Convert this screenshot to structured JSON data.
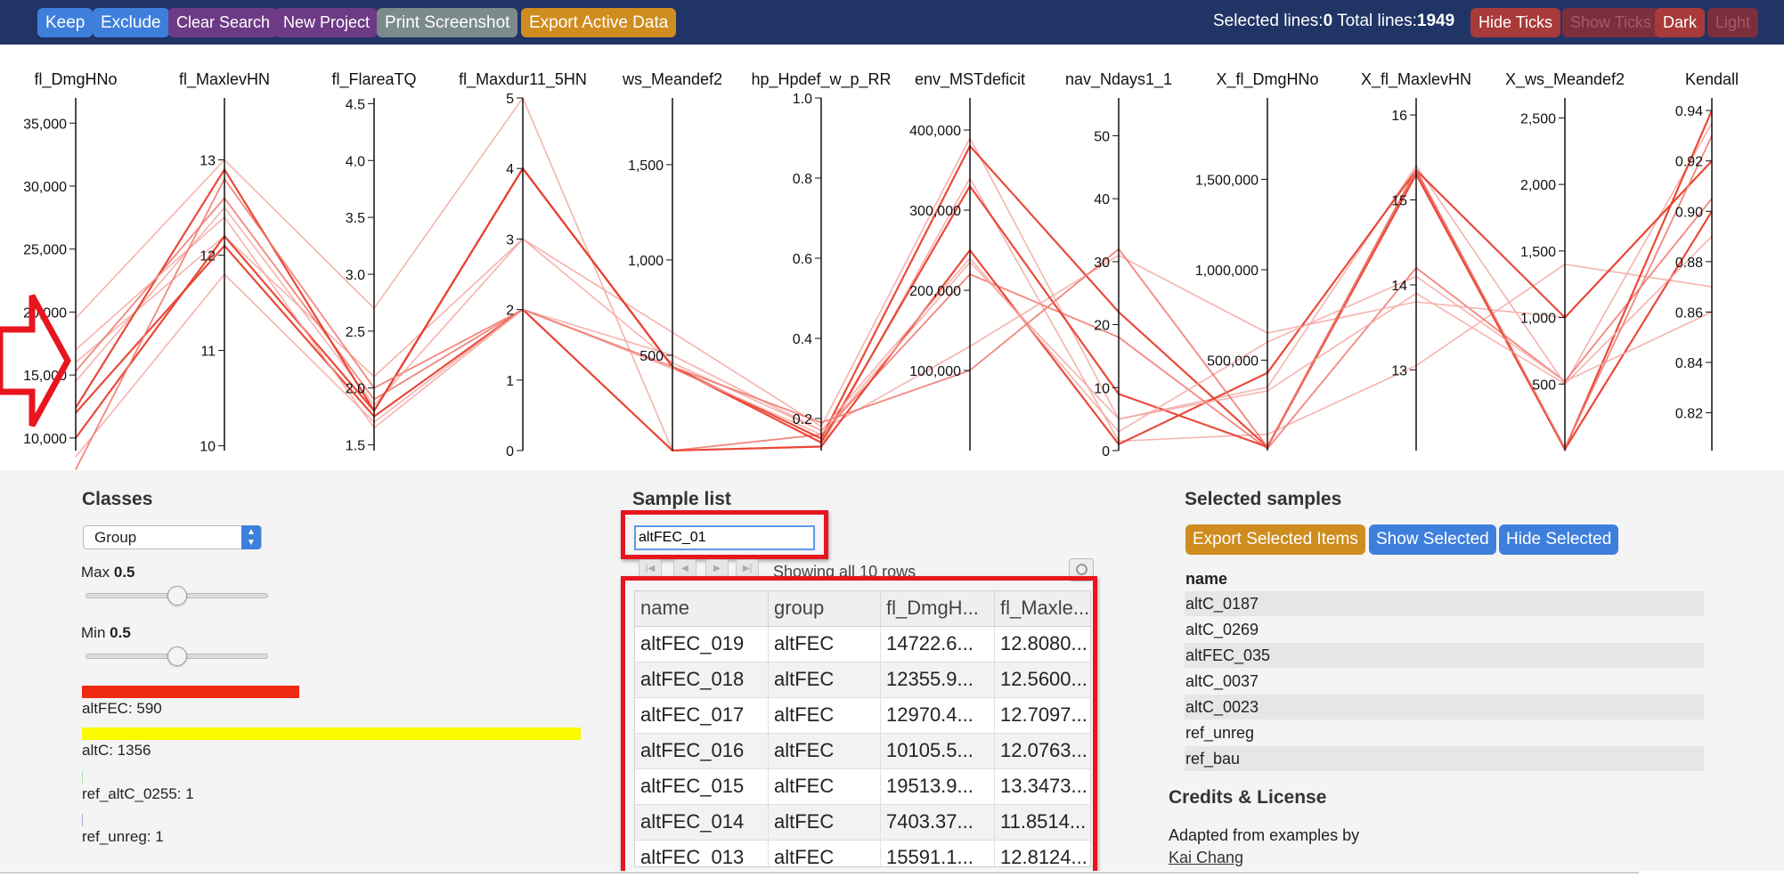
{
  "toolbar": {
    "keep": "Keep",
    "exclude": "Exclude",
    "clear_search": "Clear Search",
    "new_project": "New Project",
    "print_screenshot": "Print Screenshot",
    "export_active": "Export Active Data",
    "selected_label": "Selected lines:",
    "selected_count": "0",
    "total_label": "Total lines:",
    "total_count": "1949",
    "hide_ticks": "Hide Ticks",
    "show_ticks": "Show Ticks",
    "dark": "Dark",
    "light": "Light"
  },
  "chart_data": {
    "type": "parallel-coordinates",
    "axes": [
      {
        "name": "fl_DmgHNo",
        "min": 9000,
        "max": 37000,
        "ticks": [
          10000,
          15000,
          20000,
          25000,
          30000,
          35000
        ],
        "tick_labels": [
          "10,000",
          "15,000",
          "20,000",
          "25,000",
          "30,000",
          "35,000"
        ]
      },
      {
        "name": "fl_MaxlevHN",
        "min": 9.95,
        "max": 13.65,
        "ticks": [
          10,
          11,
          12,
          13
        ],
        "tick_labels": [
          "10",
          "11",
          "12",
          "13"
        ]
      },
      {
        "name": "fl_FlareaTQ",
        "min": 1.45,
        "max": 4.55,
        "ticks": [
          1.5,
          2.0,
          2.5,
          3.0,
          3.5,
          4.0,
          4.5
        ],
        "tick_labels": [
          "1.5",
          "2.0",
          "2.5",
          "3.0",
          "3.5",
          "4.0",
          "4.5"
        ]
      },
      {
        "name": "fl_Maxdur11_5HN",
        "min": 0,
        "max": 5,
        "ticks": [
          0,
          1,
          2,
          3,
          4,
          5
        ],
        "tick_labels": [
          "0",
          "1",
          "2",
          "3",
          "4",
          "5"
        ]
      },
      {
        "name": "ws_Meandef2",
        "min": 0,
        "max": 1850,
        "ticks": [
          500,
          1000,
          1500
        ],
        "tick_labels": [
          "500",
          "1,000",
          "1,500"
        ]
      },
      {
        "name": "hp_Hpdef_w_p_RR",
        "min": 0.12,
        "max": 1.0,
        "ticks": [
          0.2,
          0.4,
          0.6,
          0.8,
          1.0
        ],
        "tick_labels": [
          "0.2",
          "0.4",
          "0.6",
          "0.8",
          "1.0"
        ]
      },
      {
        "name": "env_MSTdeficit",
        "min": 0,
        "max": 440000,
        "ticks": [
          100000,
          200000,
          300000,
          400000
        ],
        "tick_labels": [
          "100,000",
          "200,000",
          "300,000",
          "400,000"
        ]
      },
      {
        "name": "nav_Ndays1_1",
        "min": 0,
        "max": 56,
        "ticks": [
          0,
          10,
          20,
          30,
          40,
          50
        ],
        "tick_labels": [
          "0",
          "10",
          "20",
          "30",
          "40",
          "50"
        ]
      },
      {
        "name": "X_fl_DmgHNo",
        "min": 0,
        "max": 1950000,
        "ticks": [
          500000,
          1000000,
          1500000
        ],
        "tick_labels": [
          "500,000",
          "1,000,000",
          "1,500,000"
        ]
      },
      {
        "name": "X_fl_MaxlevHN",
        "min": 12.05,
        "max": 16.2,
        "ticks": [
          13,
          14,
          15,
          16
        ],
        "tick_labels": [
          "13",
          "14",
          "15",
          "16"
        ]
      },
      {
        "name": "X_ws_Meandef2",
        "min": 0,
        "max": 2650,
        "ticks": [
          500,
          1000,
          1500,
          2000,
          2500
        ],
        "tick_labels": [
          "500",
          "1,000",
          "1,500",
          "2,000",
          "2,500"
        ]
      },
      {
        "name": "Kendall",
        "min": 0.805,
        "max": 0.945,
        "ticks": [
          0.82,
          0.84,
          0.86,
          0.88,
          0.9,
          0.92,
          0.94
        ],
        "tick_labels": [
          "0.82",
          "0.84",
          "0.86",
          "0.88",
          "0.90",
          "0.92",
          "0.94"
        ]
      }
    ],
    "lines": [
      {
        "values": [
          19500,
          13.0,
          2.7,
          5.0,
          0,
          0.13,
          340000,
          1.5,
          90000,
          13.05,
          1400,
          0.87
        ],
        "emphasis": "light"
      },
      {
        "values": [
          16000,
          12.2,
          2.1,
          3.0,
          620,
          0.18,
          390000,
          5,
          350000,
          15.4,
          500,
          0.935
        ],
        "emphasis": "light"
      },
      {
        "values": [
          15300,
          12.6,
          1.9,
          2.0,
          0,
          0.16,
          220000,
          18,
          10000,
          14.2,
          520,
          0.905
        ],
        "emphasis": "medium"
      },
      {
        "values": [
          14500,
          12.5,
          1.85,
          3.0,
          460,
          0.17,
          130000,
          31,
          650000,
          13.8,
          1000,
          0.92
        ],
        "emphasis": "light"
      },
      {
        "values": [
          12400,
          12.9,
          1.8,
          4.0,
          440,
          0.14,
          330000,
          9,
          20000,
          15.3,
          10,
          0.94
        ],
        "emphasis": "dark"
      },
      {
        "values": [
          12000,
          12.1,
          1.75,
          2.0,
          0,
          0.13,
          250000,
          1,
          430000,
          15.35,
          10,
          0.9
        ],
        "emphasis": "dark"
      },
      {
        "values": [
          10000,
          12.2,
          1.8,
          4.0,
          440,
          0.15,
          380000,
          22,
          20000,
          15.35,
          1000,
          0.92
        ],
        "emphasis": "dark"
      },
      {
        "values": [
          8500,
          11.8,
          1.7,
          2.0,
          430,
          0.16,
          235000,
          5,
          330000,
          13.9,
          500,
          0.89
        ],
        "emphasis": "light"
      },
      {
        "values": [
          17000,
          12.4,
          1.65,
          2.0,
          500,
          0.17,
          240000,
          3,
          600000,
          14.1,
          520,
          0.86
        ],
        "emphasis": "light"
      },
      {
        "values": [
          7500,
          12.8,
          2.0,
          2.0,
          440,
          0.19,
          100000,
          32,
          20000,
          15.35,
          20,
          0.93
        ],
        "emphasis": "medium"
      }
    ]
  },
  "classes": {
    "title": "Classes",
    "dropdown_value": "Group",
    "max_label": "Max",
    "max_value": "0.5",
    "min_label": "Min",
    "min_value": "0.5",
    "slider_max_level": 0.5,
    "slider_min_level": 0.5,
    "entries": [
      {
        "label": "altFEC: 590",
        "color": "#f02a12",
        "count": 590
      },
      {
        "label": "altC: 1356",
        "color": "#fbfb00",
        "count": 1356
      },
      {
        "label": "ref_altC_0255: 1",
        "color": "#9fe3a8",
        "count": 1
      },
      {
        "label": "ref_unreg: 1",
        "color": "#a7a3e8",
        "count": 1
      }
    ]
  },
  "samples": {
    "title": "Sample list",
    "search_value": "altFEC_01",
    "showing_text": "Showing all 10 rows",
    "columns": [
      "name",
      "group",
      "fl_DmgH...",
      "fl_Maxle..."
    ],
    "rows": [
      [
        "altFEC_019",
        "altFEC",
        "14722.6...",
        "12.8080..."
      ],
      [
        "altFEC_018",
        "altFEC",
        "12355.9...",
        "12.5600..."
      ],
      [
        "altFEC_017",
        "altFEC",
        "12970.4...",
        "12.7097..."
      ],
      [
        "altFEC_016",
        "altFEC",
        "10105.5...",
        "12.0763..."
      ],
      [
        "altFEC_015",
        "altFEC",
        "19513.9...",
        "13.3473..."
      ],
      [
        "altFEC_014",
        "altFEC",
        "7403.37...",
        "11.8514..."
      ],
      [
        "altFEC_013",
        "altFEC",
        "15591.1...",
        "12.8124..."
      ]
    ]
  },
  "selected": {
    "title": "Selected samples",
    "export_btn": "Export Selected Items",
    "show_btn": "Show Selected",
    "hide_btn": "Hide Selected",
    "column": "name",
    "rows": [
      "altC_0187",
      "altC_0269",
      "altFEC_035",
      "altC_0037",
      "altC_0023",
      "ref_unreg",
      "ref_bau"
    ]
  },
  "credits": {
    "title": "Credits & License",
    "text": "Adapted from examples by",
    "link": "Kai Chang"
  }
}
